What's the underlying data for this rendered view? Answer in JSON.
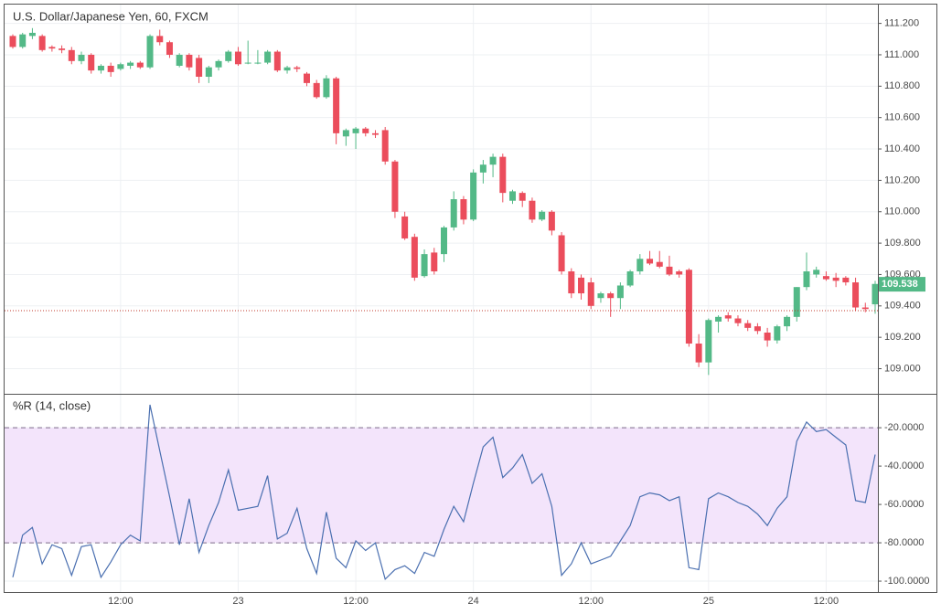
{
  "chart_data": [
    {
      "type": "candlestick",
      "title": "U.S. Dollar/Japanese Yen, 60, FXCM",
      "categories": [
        null,
        null,
        null,
        null,
        null,
        null,
        null,
        null,
        null,
        null,
        null,
        "12:00",
        null,
        null,
        null,
        null,
        null,
        null,
        null,
        null,
        null,
        null,
        null,
        "23",
        null,
        null,
        null,
        null,
        null,
        null,
        null,
        null,
        null,
        null,
        null,
        "12:00",
        null,
        null,
        null,
        null,
        null,
        null,
        null,
        null,
        null,
        null,
        null,
        "24",
        null,
        null,
        null,
        null,
        null,
        null,
        null,
        null,
        null,
        null,
        null,
        "12:00",
        null,
        null,
        null,
        null,
        null,
        null,
        null,
        null,
        null,
        null,
        null,
        "25",
        null,
        null,
        null,
        null,
        null,
        null,
        null,
        null,
        null,
        null,
        null,
        "12:00",
        null,
        null,
        null,
        null,
        null
      ],
      "open": [
        111.12,
        111.05,
        111.12,
        111.12,
        111.05,
        111.04,
        111.03,
        110.96,
        111.0,
        110.9,
        110.93,
        110.91,
        110.93,
        110.95,
        110.92,
        111.12,
        111.08,
        110.93,
        111.0,
        110.98,
        110.86,
        110.92,
        110.96,
        111.02,
        110.95,
        110.95,
        110.95,
        111.02,
        110.9,
        110.92,
        110.88,
        110.82,
        110.73,
        110.85,
        110.48,
        110.5,
        110.53,
        110.5,
        110.52,
        110.32,
        109.97,
        109.84,
        109.59,
        109.74,
        109.73,
        109.9,
        110.08,
        109.95,
        110.25,
        110.3,
        110.35,
        110.07,
        110.12,
        110.07,
        109.95,
        110.0,
        109.85,
        109.62,
        109.58,
        109.55,
        109.45,
        109.48,
        109.45,
        109.53,
        109.62,
        109.7,
        109.68,
        109.65,
        109.62,
        109.63,
        109.16,
        109.04,
        109.3,
        109.34,
        109.32,
        109.29,
        109.27,
        109.23,
        109.18,
        109.27,
        109.33,
        109.52,
        109.6,
        109.59,
        109.58,
        109.58,
        109.55,
        109.39,
        109.41
      ],
      "high": [
        111.13,
        111.14,
        111.17,
        111.13,
        111.06,
        111.06,
        111.05,
        111.02,
        111.01,
        110.94,
        110.95,
        110.95,
        110.96,
        110.96,
        111.13,
        111.16,
        111.09,
        111.01,
        111.01,
        111.0,
        110.93,
        110.97,
        111.03,
        111.05,
        111.09,
        111.03,
        111.03,
        111.03,
        110.93,
        110.93,
        110.89,
        110.84,
        110.87,
        110.86,
        110.53,
        110.54,
        110.54,
        110.52,
        110.54,
        110.33,
        110.0,
        109.86,
        109.76,
        109.77,
        109.91,
        110.13,
        110.1,
        110.27,
        110.33,
        110.37,
        110.37,
        110.14,
        110.13,
        110.09,
        110.01,
        110.01,
        109.87,
        109.64,
        109.6,
        109.58,
        109.49,
        109.49,
        109.55,
        109.63,
        109.73,
        109.75,
        109.75,
        109.72,
        109.63,
        109.64,
        109.22,
        109.32,
        109.34,
        109.36,
        109.34,
        109.31,
        109.29,
        109.26,
        109.28,
        109.34,
        109.52,
        109.74,
        109.65,
        109.62,
        109.61,
        109.59,
        109.58,
        109.42,
        109.56
      ],
      "low": [
        111.04,
        111.04,
        111.1,
        111.02,
        111.02,
        111.01,
        110.94,
        110.94,
        110.88,
        110.88,
        110.86,
        110.9,
        110.91,
        110.91,
        110.91,
        111.06,
        110.98,
        110.92,
        110.9,
        110.82,
        110.82,
        110.9,
        110.95,
        110.93,
        110.94,
        110.94,
        110.94,
        110.89,
        110.88,
        110.89,
        110.8,
        110.72,
        110.72,
        110.43,
        110.42,
        110.4,
        110.48,
        110.47,
        110.3,
        109.96,
        109.82,
        109.56,
        109.58,
        109.6,
        109.68,
        109.88,
        109.92,
        109.94,
        110.18,
        110.22,
        110.06,
        110.05,
        110.03,
        109.93,
        109.94,
        109.85,
        109.6,
        109.45,
        109.44,
        109.38,
        109.42,
        109.33,
        109.38,
        109.52,
        109.6,
        109.66,
        109.64,
        109.59,
        109.58,
        109.14,
        109.01,
        108.96,
        109.23,
        109.3,
        109.27,
        109.24,
        109.22,
        109.14,
        109.16,
        109.24,
        109.3,
        109.5,
        109.58,
        109.56,
        109.52,
        109.53,
        109.37,
        109.36,
        109.35
      ],
      "close": [
        111.05,
        111.13,
        111.14,
        111.03,
        111.04,
        111.03,
        110.96,
        111.0,
        110.9,
        110.93,
        110.89,
        110.94,
        110.95,
        110.92,
        111.12,
        111.08,
        111.0,
        111.0,
        110.92,
        110.86,
        110.92,
        110.96,
        111.02,
        110.94,
        110.95,
        110.95,
        111.02,
        110.9,
        110.92,
        110.91,
        110.82,
        110.73,
        110.85,
        110.5,
        110.52,
        110.53,
        110.5,
        110.49,
        110.32,
        110.0,
        109.83,
        109.58,
        109.73,
        109.62,
        109.9,
        110.08,
        109.95,
        110.25,
        110.3,
        110.35,
        110.12,
        110.13,
        110.07,
        109.95,
        110.0,
        109.88,
        109.62,
        109.48,
        109.48,
        109.4,
        109.48,
        109.45,
        109.53,
        109.62,
        109.7,
        109.67,
        109.65,
        109.6,
        109.6,
        109.16,
        109.04,
        109.31,
        109.33,
        109.32,
        109.29,
        109.26,
        109.24,
        109.18,
        109.27,
        109.33,
        109.52,
        109.62,
        109.63,
        109.57,
        109.56,
        109.55,
        109.39,
        109.38,
        109.54
      ],
      "up_color": "#53b987",
      "down_color": "#eb4d5c",
      "ylim": [
        108.84,
        111.32
      ],
      "yticks": [
        {
          "value": 109.0,
          "label": "109.000"
        },
        {
          "value": 109.2,
          "label": "109.200"
        },
        {
          "value": 109.4,
          "label": "109.400"
        },
        {
          "value": 109.6,
          "label": "109.600"
        },
        {
          "value": 109.8,
          "label": "109.800"
        },
        {
          "value": 110.0,
          "label": "110.000"
        },
        {
          "value": 110.2,
          "label": "110.200"
        },
        {
          "value": 110.4,
          "label": "110.400"
        },
        {
          "value": 110.6,
          "label": "110.600"
        },
        {
          "value": 110.8,
          "label": "110.800"
        },
        {
          "value": 111.0,
          "label": "111.000"
        },
        {
          "value": 111.2,
          "label": "111.200"
        }
      ],
      "last_price": 109.538,
      "reference_line": 109.37,
      "reference_color": "#c0392b",
      "grid": true
    },
    {
      "type": "line",
      "title": "%R (14, close)",
      "values": [
        -98,
        -76,
        -72,
        -91,
        -81,
        -83,
        -97,
        -82,
        -81,
        -98,
        -90,
        -81,
        -76,
        -79,
        -8,
        -32,
        -56,
        -81,
        -57,
        -85,
        -71,
        -59,
        -42,
        -63,
        -62,
        -61,
        -45,
        -78,
        -75,
        -62,
        -83,
        -96,
        -64,
        -88,
        -93,
        -79,
        -84,
        -80,
        -99,
        -94,
        -92,
        -96,
        -85,
        -87,
        -73,
        -61,
        -69,
        -49,
        -30,
        -25,
        -46,
        -41,
        -34,
        -49,
        -44,
        -61,
        -97,
        -91,
        -80,
        -91,
        -89,
        -87,
        -79,
        -71,
        -56,
        -54,
        -55,
        -58,
        -56,
        -93,
        -94,
        -57,
        -54,
        -56,
        -59,
        -61,
        -65,
        -71,
        -62,
        -56,
        -27,
        -17,
        -22,
        -21,
        -25,
        -29,
        -58,
        -59,
        -34
      ],
      "color": "#4a6fb0",
      "band": [
        -80,
        -20
      ],
      "band_color": "#f3e4fb",
      "ylim": [
        -105.7,
        -2.3
      ],
      "yticks": [
        {
          "value": -20,
          "label": "-20.0000"
        },
        {
          "value": -40,
          "label": "-40.0000"
        },
        {
          "value": -60,
          "label": "-60.0000"
        },
        {
          "value": -80,
          "label": "-80.0000"
        },
        {
          "value": -100,
          "label": "-100.0000"
        }
      ],
      "grid": true
    }
  ]
}
